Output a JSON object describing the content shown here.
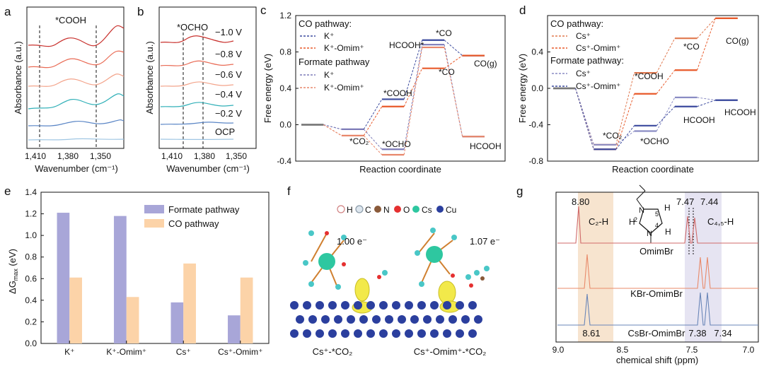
{
  "colors": {
    "k_co": "#3b4a9e",
    "k_omim_co": "#e85a2a",
    "k_formate": "#7d7bb8",
    "k_omim_formate": "#e8876b",
    "cs_co": "#e0784e",
    "cs_omim_co": "#e85a2a",
    "cs_formate": "#8a8cc4",
    "cs_omim_formate": "#3b4a9e",
    "bar_formate": "#a8a6d8",
    "bar_co": "#fcd3a8",
    "gray_level": "#777777",
    "shade_orange": "#f7e4cf",
    "shade_purple": "#e6e4f2"
  },
  "panels": {
    "a": {
      "label": "a",
      "xlabel": "Wavenumber (cm⁻¹)",
      "ylabel": "Absorbance (a.u.)",
      "annotation": "*COOH",
      "xticks": [
        "1,410",
        "1,380",
        "1,350"
      ]
    },
    "b": {
      "label": "b",
      "xlabel": "Wavenumber (cm⁻¹)",
      "ylabel": "Absorbance (a.u.)",
      "annotation": "*OCHO",
      "xticks": [
        "1,410",
        "1,380",
        "1,350"
      ],
      "potentials": [
        "−1.0 V",
        "−0.8 V",
        "−0.6 V",
        "−0.4 V",
        "−0.2 V",
        "OCP"
      ]
    },
    "c": {
      "label": "c",
      "xlabel": "Reaction coordinate",
      "ylabel": "Free energy (eV)",
      "legend_co_title": "CO pathway:",
      "legend_formate_title": "Formate pathway",
      "legend_items": [
        "K⁺",
        "K⁺-Omim⁺",
        "K⁺",
        "K⁺-Omim⁺"
      ],
      "labels": [
        "*CO₂",
        "*COOH",
        "*OCHO",
        "HCOOH*",
        "*CO",
        "*CO",
        "CO(g)",
        "HCOOH"
      ]
    },
    "d": {
      "label": "d",
      "xlabel": "Reaction coordinate",
      "ylabel": "Free energy (eV)",
      "legend_co_title": "CO pathway:",
      "legend_formate_title": "Formate pathway:",
      "legend_items": [
        "Cs⁺",
        "Cs⁺-Omim⁺",
        "Cs⁺",
        "Cs⁺-Omim⁺"
      ],
      "labels": [
        "*CO₂",
        "*COOH",
        "*OCHO",
        "*CO",
        "CO(g)",
        "HCOOH",
        "HCOOH"
      ]
    },
    "e": {
      "label": "e",
      "ylabel": "ΔG",
      "ylabel_sub": "max",
      "ylabel_unit": " (eV)"
    },
    "f": {
      "label": "f",
      "legend": [
        "H",
        "C",
        "N",
        "O",
        "Cs",
        "Cu"
      ],
      "charge_left": "1.00 e⁻",
      "charge_right": "1.07 e⁻",
      "caption_left": "Cs⁺-*CO₂",
      "caption_right": "Cs⁺-Omim⁺-*CO₂"
    },
    "g": {
      "label": "g",
      "xlabel": "chemical shift (ppm)",
      "xticks": [
        "9.0",
        "8.5",
        "7.5",
        "7.0"
      ],
      "peak_labels_top": [
        "8.80",
        "7.47",
        "7.44"
      ],
      "peak_labels_bottom": [
        "8.61",
        "7.38",
        "7.34"
      ],
      "region_labels": [
        "C₂-H",
        "C₄,₅-H"
      ],
      "spectra": [
        "OmimBr",
        "KBr-OmimBr",
        "CsBr-OmimBr"
      ],
      "structure_labels": [
        "H",
        "H",
        "H",
        "N",
        "N",
        "2",
        "4",
        "5"
      ]
    }
  },
  "chart_data": [
    {
      "panel": "c",
      "type": "line",
      "ylim": [
        -0.4,
        1.2
      ],
      "yticks": [
        -0.4,
        0.0,
        0.4,
        0.8,
        1.2
      ],
      "series": [
        {
          "name": "K⁺",
          "pathway": "CO pathway",
          "values": [
            0.0,
            -0.05,
            0.28,
            0.93,
            0.76
          ]
        },
        {
          "name": "K⁺-Omim⁺",
          "pathway": "CO pathway",
          "values": [
            0.0,
            -0.12,
            0.2,
            0.62,
            0.76
          ]
        },
        {
          "name": "K⁺",
          "pathway": "Formate pathway",
          "values": [
            0.0,
            -0.05,
            -0.27,
            0.88,
            -0.13
          ]
        },
        {
          "name": "K⁺-Omim⁺",
          "pathway": "Formate pathway",
          "values": [
            0.0,
            -0.12,
            -0.33,
            0.85,
            -0.13
          ]
        }
      ]
    },
    {
      "panel": "d",
      "type": "line",
      "ylim": [
        -0.8,
        0.8
      ],
      "yticks": [
        -0.8,
        -0.4,
        0.0,
        0.4
      ],
      "series": [
        {
          "name": "Cs⁺",
          "pathway": "CO pathway",
          "values": [
            0.0,
            -0.62,
            0.17,
            0.55,
            0.77
          ]
        },
        {
          "name": "Cs⁺-Omim⁺",
          "pathway": "CO pathway",
          "values": [
            0.0,
            -0.67,
            -0.06,
            0.2,
            0.77
          ]
        },
        {
          "name": "Cs⁺",
          "pathway": "Formate pathway",
          "values": [
            0.0,
            -0.62,
            -0.47,
            -0.1,
            -0.13
          ]
        },
        {
          "name": "Cs⁺-Omim⁺",
          "pathway": "Formate pathway",
          "values": [
            0.0,
            -0.67,
            -0.41,
            -0.2,
            -0.13
          ]
        }
      ]
    },
    {
      "panel": "e",
      "type": "bar",
      "categories": [
        "K⁺",
        "K⁺-Omim⁺",
        "Cs⁺",
        "Cs⁺-Omim⁺"
      ],
      "ylim": [
        0.0,
        1.4
      ],
      "yticks": [
        "0.0",
        "0.2",
        "0.4",
        "0.6",
        "0.8",
        "1.0",
        "1.2",
        "1.4"
      ],
      "series": [
        {
          "name": "Formate pathway",
          "values": [
            1.21,
            1.18,
            0.38,
            0.26
          ]
        },
        {
          "name": "CO pathway",
          "values": [
            0.61,
            0.43,
            0.74,
            0.61
          ]
        }
      ]
    }
  ]
}
